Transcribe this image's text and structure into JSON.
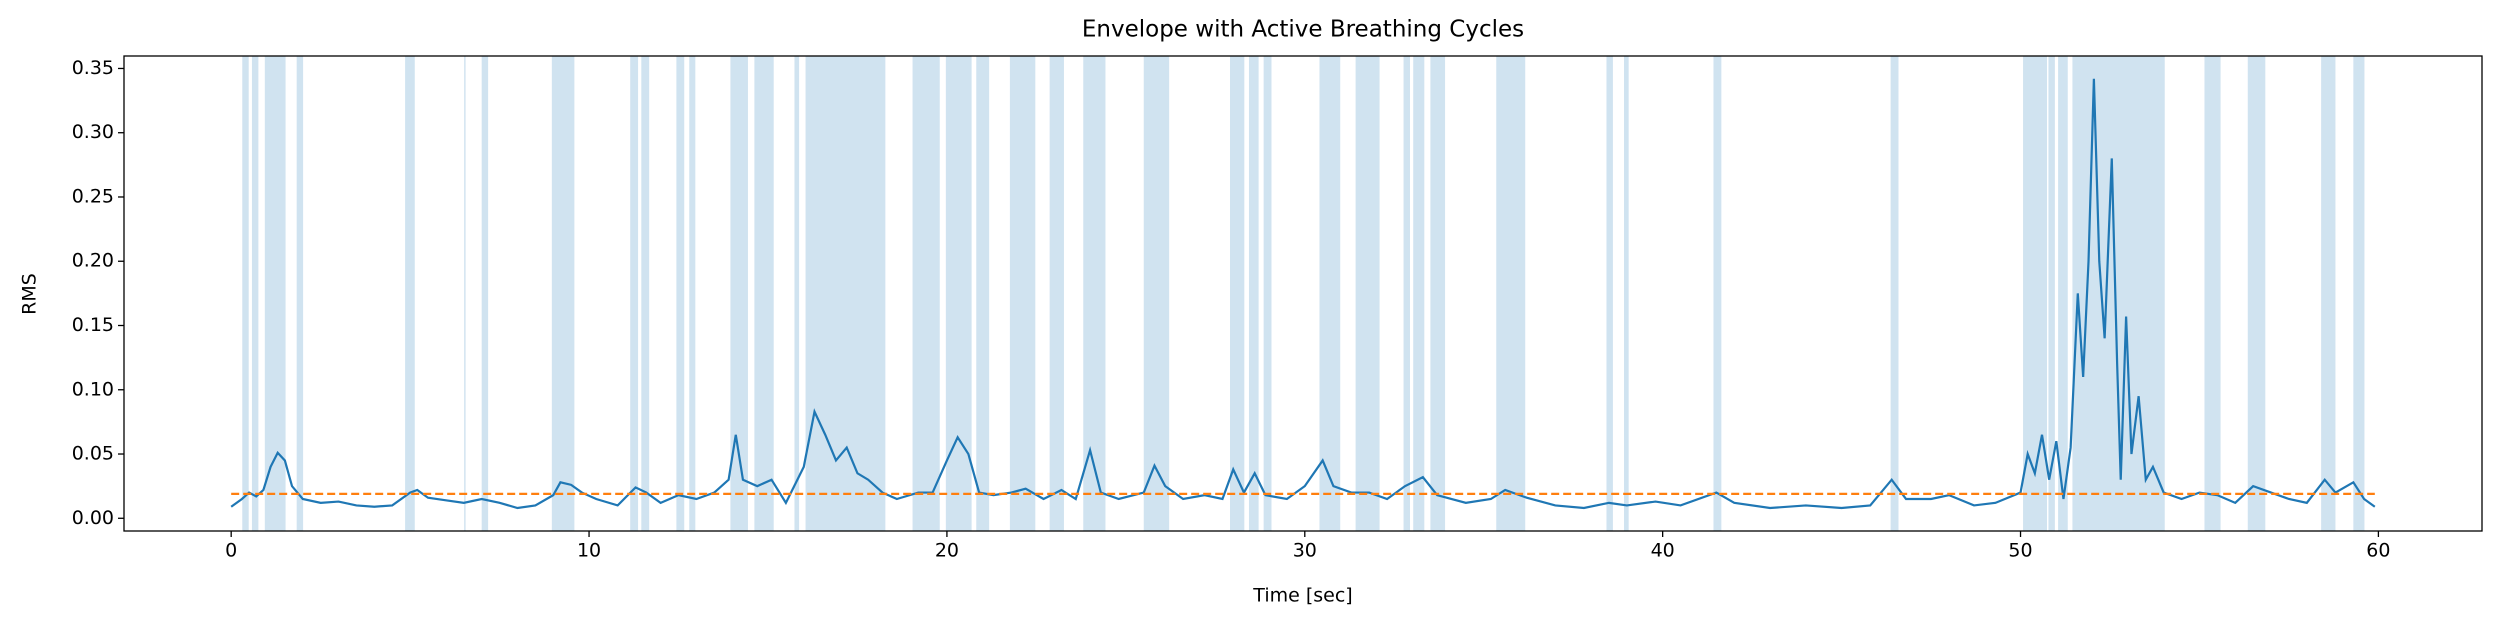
{
  "chart_data": {
    "type": "line",
    "title": "Envelope with Active Breathing Cycles",
    "xlabel": "Time [sec]",
    "ylabel": "RMS",
    "x": [
      0,
      0.3,
      0.5,
      0.7,
      0.9,
      1.1,
      1.3,
      1.5,
      1.7,
      2.0,
      2.5,
      3,
      3.5,
      4,
      4.5,
      5,
      5.2,
      5.5,
      6,
      6.5,
      7,
      7.5,
      8,
      8.5,
      9,
      9.2,
      9.5,
      9.8,
      10.2,
      10.8,
      11.3,
      11.6,
      12,
      12.5,
      13,
      13.5,
      13.9,
      14.1,
      14.3,
      14.7,
      15.1,
      15.5,
      16,
      16.3,
      16.6,
      16.9,
      17.2,
      17.5,
      17.8,
      18.2,
      18.6,
      19.2,
      19.6,
      20,
      20.3,
      20.6,
      20.9,
      21.3,
      21.8,
      22.2,
      22.7,
      23.2,
      23.6,
      24,
      24.3,
      24.8,
      25.5,
      25.8,
      26.1,
      26.6,
      27.2,
      27.7,
      28.0,
      28.3,
      28.6,
      28.9,
      29.5,
      30,
      30.5,
      30.8,
      31.3,
      31.8,
      32.3,
      32.8,
      33.3,
      33.7,
      34.5,
      35.2,
      35.6,
      36.2,
      37,
      37.8,
      38.5,
      39,
      39.8,
      40.5,
      41.5,
      42,
      43,
      44,
      45,
      45.8,
      46.4,
      46.8,
      47.5,
      48,
      48.7,
      49.3,
      50,
      50.2,
      50.4,
      50.6,
      50.8,
      51,
      51.2,
      51.4,
      51.6,
      51.75,
      51.9,
      52.05,
      52.2,
      52.35,
      52.55,
      52.7,
      52.8,
      52.95,
      53.1,
      53.3,
      53.5,
      53.7,
      54,
      54.5,
      55,
      55.5,
      56,
      56.5,
      57,
      57.5,
      58,
      58.5,
      58.8,
      59.3,
      59.6,
      59.9
    ],
    "values": [
      0.009,
      0.015,
      0.02,
      0.017,
      0.022,
      0.04,
      0.051,
      0.045,
      0.025,
      0.015,
      0.012,
      0.013,
      0.01,
      0.009,
      0.01,
      0.02,
      0.022,
      0.016,
      0.014,
      0.012,
      0.015,
      0.012,
      0.008,
      0.01,
      0.018,
      0.028,
      0.026,
      0.02,
      0.015,
      0.01,
      0.024,
      0.02,
      0.012,
      0.018,
      0.015,
      0.02,
      0.03,
      0.065,
      0.03,
      0.025,
      0.03,
      0.012,
      0.04,
      0.083,
      0.065,
      0.045,
      0.055,
      0.035,
      0.03,
      0.02,
      0.015,
      0.02,
      0.02,
      0.045,
      0.063,
      0.05,
      0.02,
      0.018,
      0.02,
      0.023,
      0.015,
      0.022,
      0.015,
      0.053,
      0.02,
      0.015,
      0.02,
      0.041,
      0.025,
      0.015,
      0.018,
      0.015,
      0.038,
      0.02,
      0.035,
      0.018,
      0.015,
      0.025,
      0.045,
      0.025,
      0.02,
      0.02,
      0.015,
      0.025,
      0.032,
      0.018,
      0.012,
      0.015,
      0.022,
      0.016,
      0.01,
      0.008,
      0.012,
      0.01,
      0.013,
      0.01,
      0.02,
      0.012,
      0.008,
      0.01,
      0.008,
      0.01,
      0.03,
      0.015,
      0.015,
      0.018,
      0.01,
      0.012,
      0.02,
      0.05,
      0.035,
      0.065,
      0.03,
      0.06,
      0.015,
      0.055,
      0.175,
      0.11,
      0.2,
      0.342,
      0.2,
      0.14,
      0.28,
      0.12,
      0.03,
      0.157,
      0.05,
      0.095,
      0.03,
      0.04,
      0.02,
      0.015,
      0.02,
      0.018,
      0.012,
      0.025,
      0.02,
      0.015,
      0.012,
      0.03,
      0.02,
      0.028,
      0.015,
      0.009
    ],
    "color": "#1f77b4",
    "threshold": 0.019,
    "threshold_color": "#ff7f0e",
    "spans": [
      [
        0.31,
        0.49
      ],
      [
        0.58,
        0.76
      ],
      [
        0.94,
        1.52
      ],
      [
        1.83,
        2.01
      ],
      [
        4.86,
        5.13
      ],
      [
        6.51,
        6.55
      ],
      [
        7.0,
        7.18
      ],
      [
        8.96,
        9.59
      ],
      [
        11.15,
        11.37
      ],
      [
        11.46,
        11.68
      ],
      [
        12.44,
        12.66
      ],
      [
        12.8,
        12.97
      ],
      [
        13.95,
        14.44
      ],
      [
        14.62,
        15.16
      ],
      [
        15.74,
        15.87
      ],
      [
        16.05,
        18.28
      ],
      [
        19.04,
        19.8
      ],
      [
        19.97,
        20.69
      ],
      [
        20.82,
        21.18
      ],
      [
        21.76,
        22.47
      ],
      [
        22.87,
        23.27
      ],
      [
        23.81,
        24.43
      ],
      [
        25.5,
        26.21
      ],
      [
        27.91,
        28.31
      ],
      [
        28.44,
        28.71
      ],
      [
        28.85,
        29.07
      ],
      [
        30.41,
        30.99
      ],
      [
        31.42,
        32.09
      ],
      [
        32.76,
        32.94
      ],
      [
        33.03,
        33.34
      ],
      [
        33.51,
        33.92
      ],
      [
        35.35,
        36.16
      ],
      [
        38.43,
        38.61
      ],
      [
        38.92,
        39.05
      ],
      [
        41.42,
        41.64
      ],
      [
        46.37,
        46.59
      ],
      [
        50.07,
        50.74
      ],
      [
        50.78,
        50.96
      ],
      [
        51.05,
        51.32
      ],
      [
        51.45,
        54.03
      ],
      [
        55.14,
        55.59
      ],
      [
        56.35,
        56.84
      ],
      [
        58.4,
        58.8
      ],
      [
        59.3,
        59.61
      ]
    ],
    "span_color": "#d0e3f0",
    "xlim": [
      -2.995,
      62.895
    ],
    "ylim": [
      -0.0099,
      0.3597
    ],
    "xticks": [
      0,
      10,
      20,
      30,
      40,
      50,
      60
    ],
    "yticks": [
      {
        "value": 0,
        "label": "0.00"
      },
      {
        "value": 0.05,
        "label": "0.05"
      },
      {
        "value": 0.1,
        "label": "0.10"
      },
      {
        "value": 0.15,
        "label": "0.15"
      },
      {
        "value": 0.2,
        "label": "0.20"
      },
      {
        "value": 0.25,
        "label": "0.25"
      },
      {
        "value": 0.3,
        "label": "0.30"
      },
      {
        "value": 0.35,
        "label": "0.35"
      }
    ]
  }
}
